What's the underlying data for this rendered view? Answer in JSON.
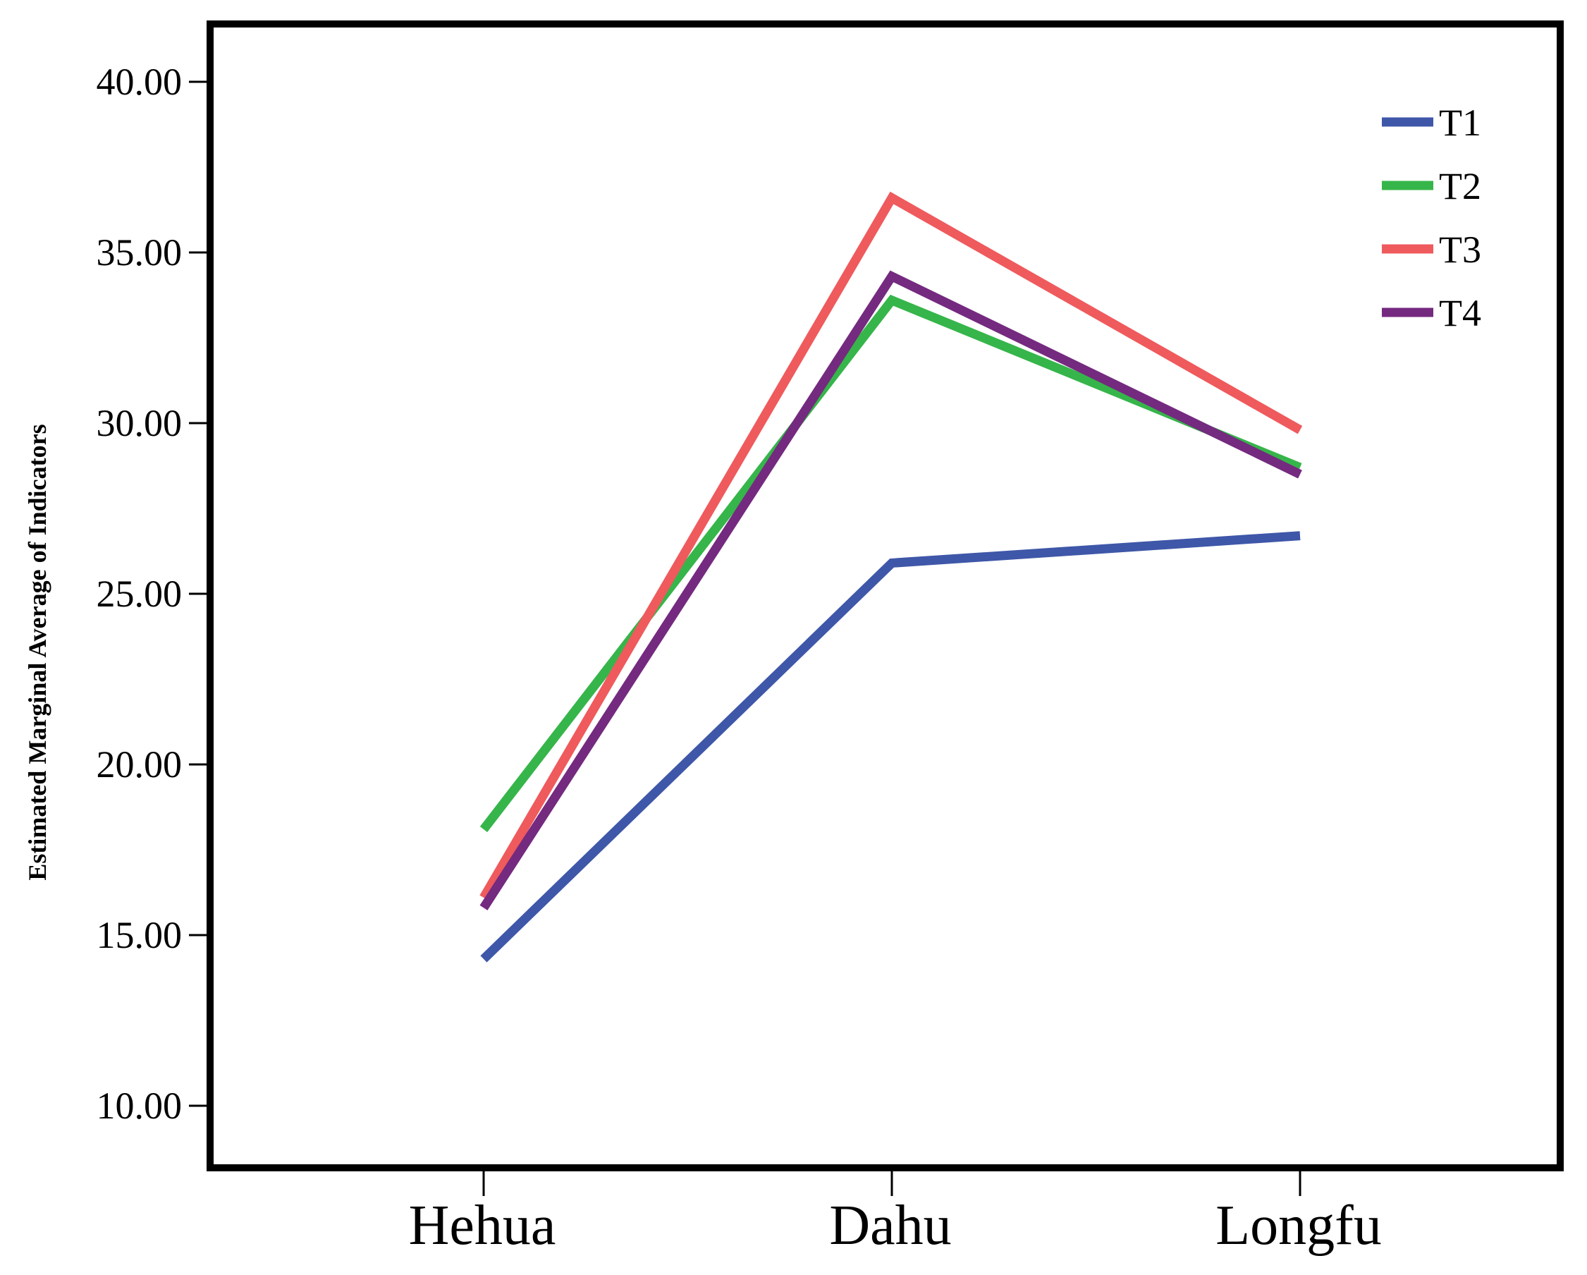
{
  "chart_data": {
    "type": "line",
    "title": "",
    "xlabel": "",
    "ylabel": "Estimated Marginal Average of Indicators",
    "categories": [
      "Hehua",
      "Dahu",
      "Longfu"
    ],
    "ylim": [
      8.5,
      42
    ],
    "yticks": [
      10,
      15,
      20,
      25,
      30,
      35,
      40
    ],
    "ytick_labels": [
      "10.00",
      "15.00",
      "20.00",
      "25.00",
      "30.00",
      "35.00",
      "40.00"
    ],
    "grid": false,
    "legend_position": "top-right",
    "series": [
      {
        "name": "T1",
        "color": "#3f57a8",
        "values": [
          14.3,
          25.9,
          26.7
        ]
      },
      {
        "name": "T2",
        "color": "#36b54a",
        "values": [
          18.1,
          33.6,
          28.7
        ]
      },
      {
        "name": "T3",
        "color": "#ef5a5d",
        "values": [
          16.1,
          36.6,
          29.8
        ]
      },
      {
        "name": "T4",
        "color": "#742a7f",
        "values": [
          15.8,
          34.3,
          28.5
        ]
      }
    ]
  }
}
